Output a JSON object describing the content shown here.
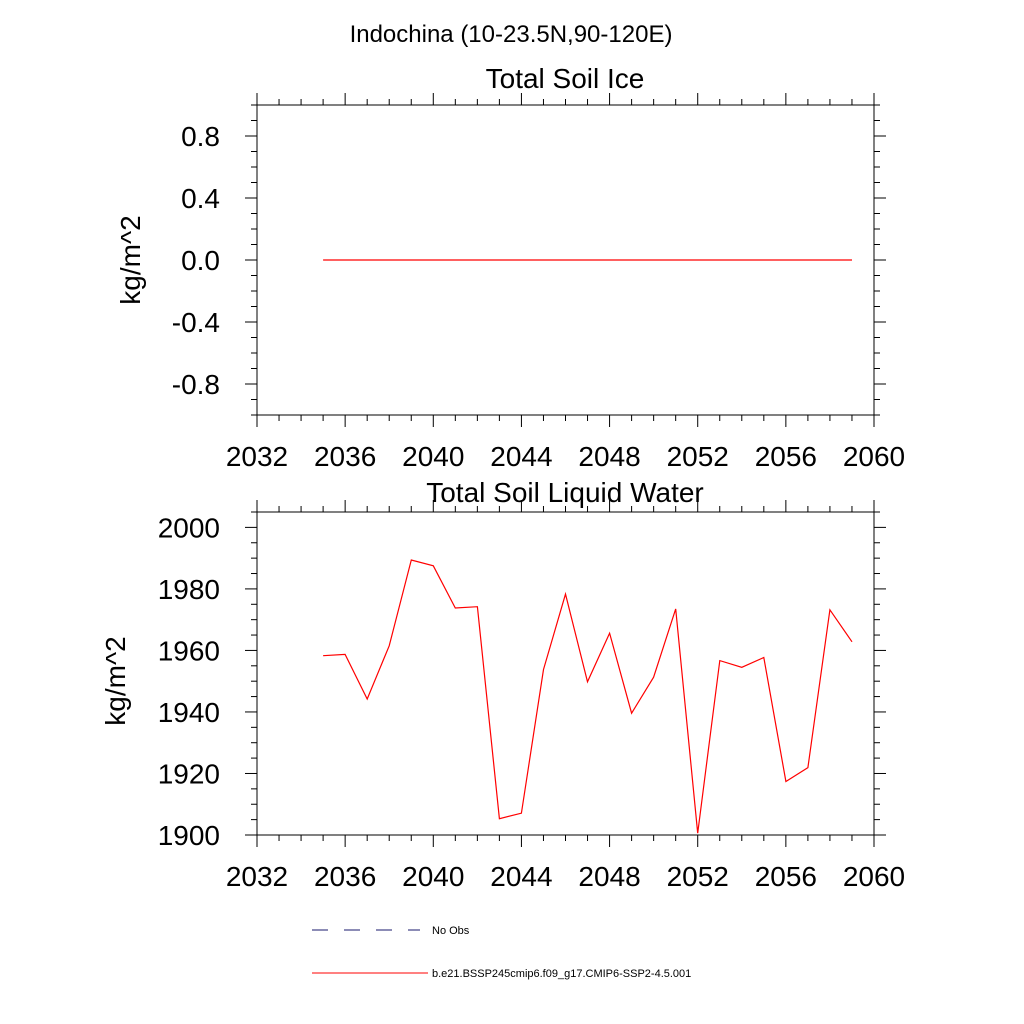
{
  "figure_title": "Indochina (10-23.5N,90-120E)",
  "line_color": "#ff0000",
  "obs_color": "#1a1a6e",
  "legend": {
    "obs_label": "No Obs",
    "model_label": "b.e21.BSSP245cmip6.f09_g17.CMIP6-SSP2-4.5.001"
  },
  "chart_data": [
    {
      "type": "line",
      "title": "Total Soil Ice",
      "ylabel": "kg/m^2",
      "xlim": [
        2032,
        2060
      ],
      "ylim": [
        -1.0,
        1.0
      ],
      "xticks": [
        2032,
        2036,
        2040,
        2044,
        2048,
        2052,
        2056,
        2060
      ],
      "yticks": [
        -0.8,
        -0.4,
        0.0,
        0.4,
        0.8
      ],
      "ytick_labels": [
        "-0.8",
        "-0.4",
        "0.0",
        "0.4",
        "0.8"
      ],
      "x": [
        2035,
        2036,
        2037,
        2038,
        2039,
        2040,
        2041,
        2042,
        2043,
        2044,
        2045,
        2046,
        2047,
        2048,
        2049,
        2050,
        2051,
        2052,
        2053,
        2054,
        2055,
        2056,
        2057,
        2058,
        2059
      ],
      "values": [
        0,
        0,
        0,
        0,
        0,
        0,
        0,
        0,
        0,
        0,
        0,
        0,
        0,
        0,
        0,
        0,
        0,
        0,
        0,
        0,
        0,
        0,
        0,
        0,
        0
      ]
    },
    {
      "type": "line",
      "title": "Total Soil Liquid Water",
      "ylabel": "kg/m^2",
      "xlim": [
        2032,
        2060
      ],
      "ylim": [
        1900,
        2005
      ],
      "xticks": [
        2032,
        2036,
        2040,
        2044,
        2048,
        2052,
        2056,
        2060
      ],
      "yticks": [
        1900,
        1920,
        1940,
        1960,
        1980,
        2000
      ],
      "ytick_labels": [
        "1900",
        "1920",
        "1940",
        "1960",
        "1980",
        "2000"
      ],
      "x": [
        2035,
        2036,
        2037,
        2038,
        2039,
        2040,
        2041,
        2042,
        2043,
        2044,
        2045,
        2046,
        2047,
        2048,
        2049,
        2050,
        2051,
        2052,
        2053,
        2054,
        2055,
        2056,
        2057,
        2058,
        2059
      ],
      "values": [
        1958.3,
        1958.7,
        1944.2,
        1961.5,
        1989.4,
        1987.5,
        1973.8,
        1974.2,
        1905.3,
        1907.1,
        1953.8,
        1978.3,
        1949.8,
        1965.6,
        1939.6,
        1951.3,
        1973.5,
        1900.6,
        1956.7,
        1954.5,
        1957.7,
        1917.4,
        1921.9,
        1973.2,
        1962.8
      ]
    }
  ]
}
